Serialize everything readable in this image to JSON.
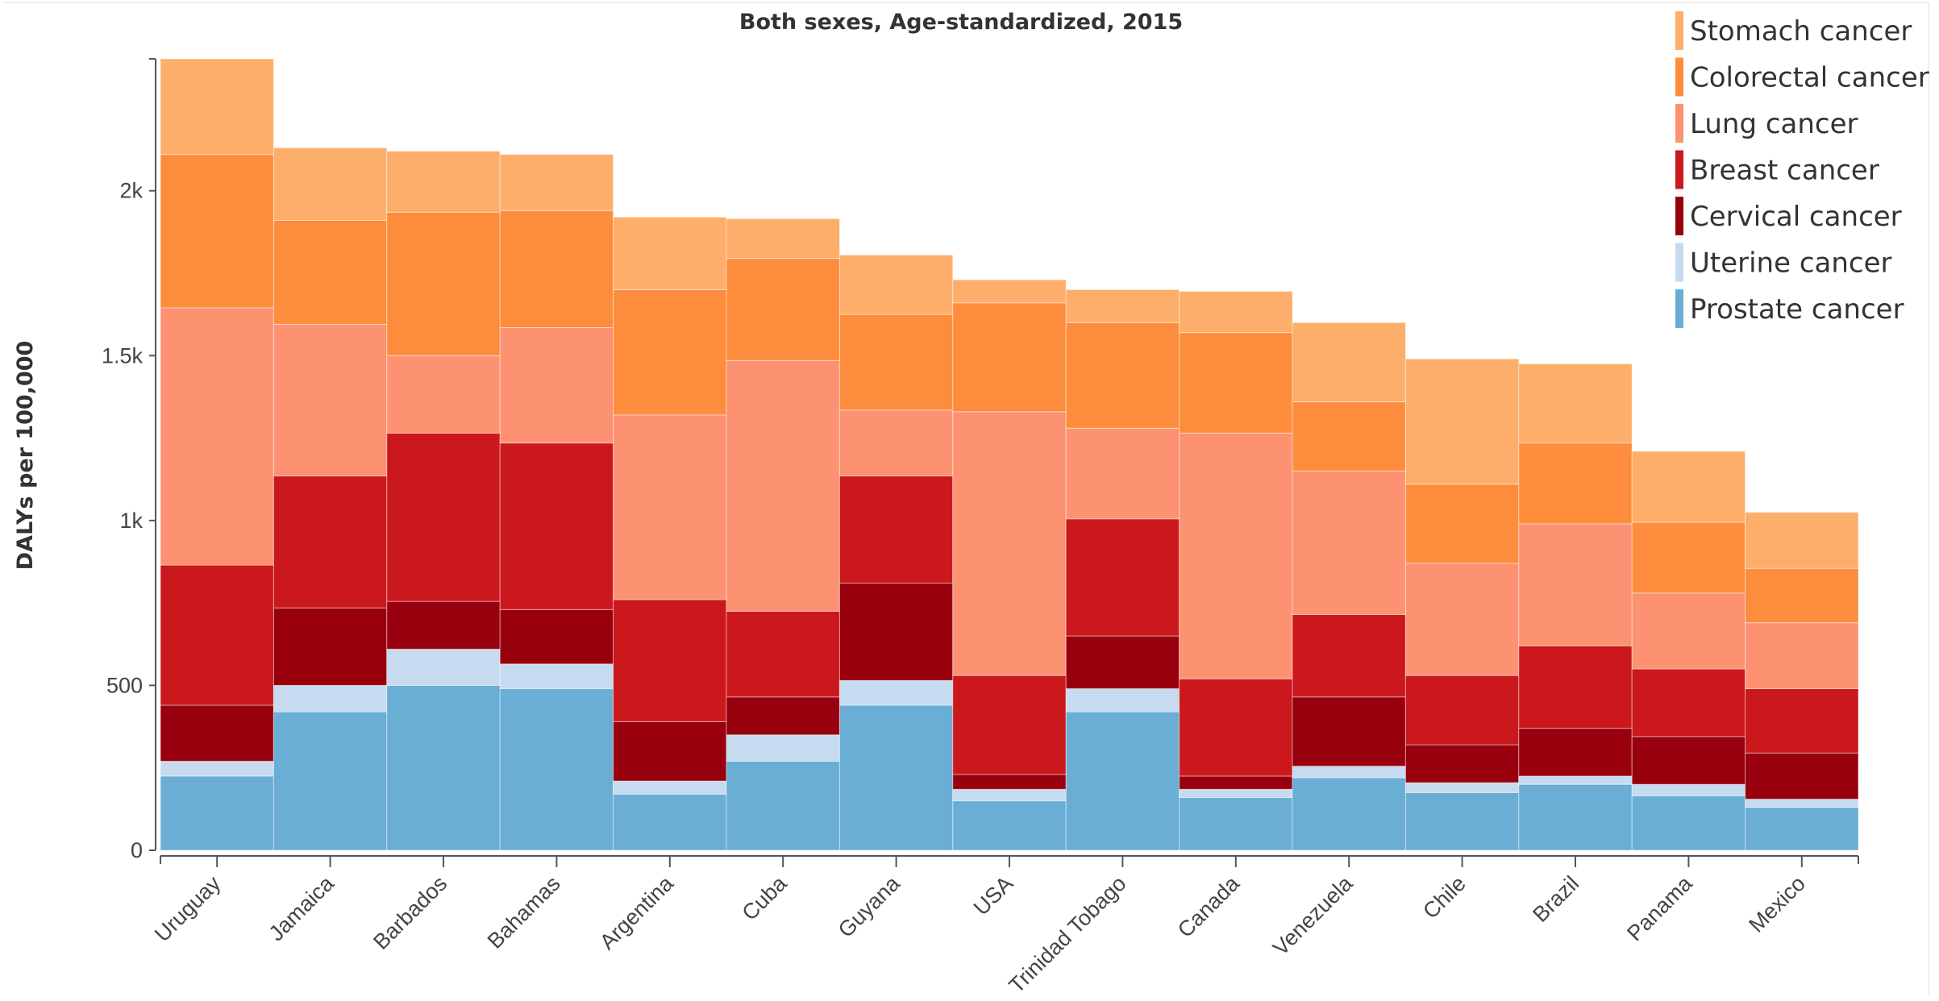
{
  "chart_data": {
    "type": "bar",
    "stacked": true,
    "title": "Both sexes, Age-standardized, 2015",
    "ylabel": "DALYs per 100,000",
    "xlabel": "",
    "ylim": [
      0,
      2400
    ],
    "yticks": [
      {
        "value": 0,
        "label": "0"
      },
      {
        "value": 500,
        "label": "500"
      },
      {
        "value": 1000,
        "label": "1k"
      },
      {
        "value": 1500,
        "label": "1.5k"
      },
      {
        "value": 2000,
        "label": "2k"
      }
    ],
    "legend_position": "top-right",
    "categories": [
      "Uruguay",
      "Jamaica",
      "Barbados",
      "Bahamas",
      "Argentina",
      "Cuba",
      "Guyana",
      "USA",
      "Trinidad Tobago",
      "Canada",
      "Venezuela",
      "Chile",
      "Brazil",
      "Panama",
      "Mexico"
    ],
    "series": [
      {
        "name": "Prostate cancer",
        "color": "#6aaed6",
        "values": [
          225,
          420,
          500,
          490,
          170,
          270,
          440,
          150,
          420,
          160,
          220,
          175,
          200,
          165,
          130
        ]
      },
      {
        "name": "Uterine cancer",
        "color": "#c6dbef",
        "values": [
          45,
          80,
          110,
          75,
          40,
          80,
          75,
          35,
          70,
          25,
          35,
          30,
          25,
          35,
          25
        ]
      },
      {
        "name": "Cervical cancer",
        "color": "#99000d",
        "values": [
          170,
          235,
          145,
          165,
          180,
          115,
          295,
          45,
          160,
          40,
          210,
          115,
          145,
          145,
          140
        ]
      },
      {
        "name": "Breast cancer",
        "color": "#cb181d",
        "values": [
          425,
          400,
          510,
          505,
          370,
          260,
          325,
          300,
          355,
          295,
          250,
          210,
          250,
          205,
          195
        ]
      },
      {
        "name": "Lung cancer",
        "color": "#fc9272",
        "values": [
          780,
          460,
          235,
          350,
          560,
          760,
          200,
          800,
          275,
          745,
          435,
          340,
          370,
          230,
          200
        ]
      },
      {
        "name": "Colorectal cancer",
        "color": "#fd8d3c",
        "values": [
          465,
          315,
          435,
          355,
          380,
          310,
          290,
          330,
          320,
          305,
          210,
          240,
          245,
          215,
          165
        ]
      },
      {
        "name": "Stomach cancer",
        "color": "#fdae6b",
        "values": [
          290,
          220,
          185,
          170,
          220,
          120,
          180,
          70,
          100,
          125,
          240,
          380,
          240,
          215,
          170
        ]
      }
    ]
  }
}
